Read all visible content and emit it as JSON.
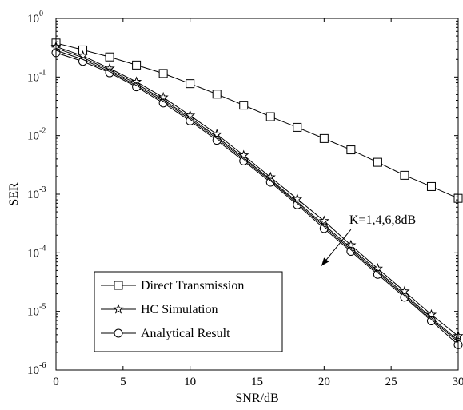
{
  "chart_data": {
    "type": "line",
    "xlabel": "SNR/dB",
    "ylabel": "SER",
    "xlim": [
      0,
      30
    ],
    "ylim": [
      1e-06,
      1
    ],
    "yscale": "log",
    "grid": false,
    "legend_position": "bottom-left",
    "x_ticks": [
      {
        "value": 0,
        "label": "0"
      },
      {
        "value": 5,
        "label": "5"
      },
      {
        "value": 10,
        "label": "10"
      },
      {
        "value": 15,
        "label": "15"
      },
      {
        "value": 20,
        "label": "20"
      },
      {
        "value": 25,
        "label": "25"
      },
      {
        "value": 30,
        "label": "30"
      }
    ],
    "y_ticks": [
      {
        "value": 1,
        "base": "10",
        "exp": "0"
      },
      {
        "value": 0.1,
        "base": "10",
        "exp": "-1"
      },
      {
        "value": 0.01,
        "base": "10",
        "exp": "-2"
      },
      {
        "value": 0.001,
        "base": "10",
        "exp": "-3"
      },
      {
        "value": 0.0001,
        "base": "10",
        "exp": "-4"
      },
      {
        "value": 1e-05,
        "base": "10",
        "exp": "-5"
      },
      {
        "value": 1e-06,
        "base": "10",
        "exp": "-6"
      }
    ],
    "x": [
      0,
      2,
      4,
      6,
      8,
      10,
      12,
      14,
      16,
      18,
      20,
      22,
      24,
      26,
      28,
      30
    ],
    "series": [
      {
        "name": "Direct Transmission",
        "marker": "square",
        "values": [
          0.38,
          0.29,
          0.22,
          0.16,
          0.115,
          0.077,
          0.051,
          0.033,
          0.021,
          0.0138,
          0.0089,
          0.0057,
          0.0035,
          0.0021,
          0.00135,
          0.00085
        ]
      },
      {
        "name": "HC Simulation",
        "marker": "star",
        "values": [
          0.33,
          0.23,
          0.14,
          0.083,
          0.045,
          0.022,
          0.0105,
          0.0046,
          0.00195,
          0.00083,
          0.00035,
          0.000135,
          5.4e-05,
          2.2e-05,
          8.8e-06,
          3.8e-06
        ]
      },
      {
        "name": "Analytical Result",
        "marker": "circle",
        "values": [
          0.26,
          0.185,
          0.118,
          0.068,
          0.036,
          0.0178,
          0.0083,
          0.0037,
          0.0016,
          0.00066,
          0.00026,
          0.000106,
          4.3e-05,
          1.75e-05,
          6.9e-06,
          2.7e-06
        ]
      },
      {
        "marker": "none",
        "values": [
          0.31,
          0.215,
          0.131,
          0.077,
          0.041,
          0.0202,
          0.0095,
          0.0042,
          0.00178,
          0.00074,
          0.0003,
          0.000121,
          4.9e-05,
          1.98e-05,
          7.8e-06,
          3.2e-06
        ]
      },
      {
        "marker": "none",
        "values": [
          0.285,
          0.2,
          0.124,
          0.072,
          0.0385,
          0.019,
          0.0089,
          0.00395,
          0.0017,
          0.0007,
          0.00028,
          0.000113,
          4.6e-05,
          1.86e-05,
          7.3e-06,
          3e-06
        ]
      }
    ],
    "annotation": {
      "text": "K=1,4,6,8dB",
      "arrow_from": [
        22,
        0.00025
      ],
      "arrow_to": [
        19.8,
        6e-05
      ]
    }
  }
}
